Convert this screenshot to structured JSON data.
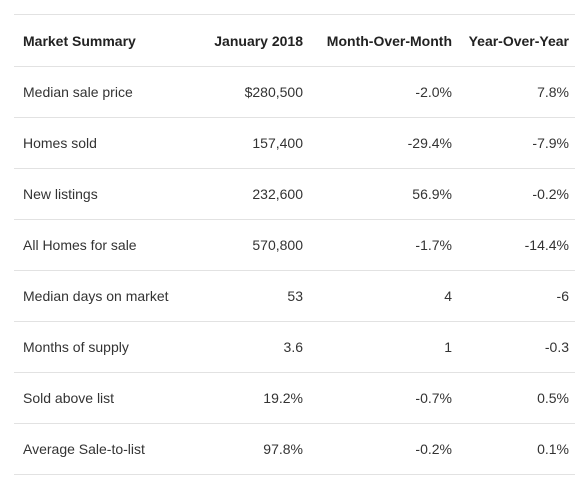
{
  "table": {
    "headers": [
      "Market Summary",
      "January 2018",
      "Month-Over-Month",
      "Year-Over-Year"
    ],
    "rows": [
      [
        "Median sale price",
        "$280,500",
        "-2.0%",
        "7.8%"
      ],
      [
        "Homes sold",
        "157,400",
        "-29.4%",
        "-7.9%"
      ],
      [
        "New listings",
        "232,600",
        "56.9%",
        "-0.2%"
      ],
      [
        "All Homes for sale",
        "570,800",
        "-1.7%",
        "-14.4%"
      ],
      [
        "Median days on market",
        "53",
        "4",
        "-6"
      ],
      [
        "Months of supply",
        "3.6",
        "1",
        "-0.3"
      ],
      [
        "Sold above list",
        "19.2%",
        "-0.7%",
        "0.5%"
      ],
      [
        "Average Sale-to-list",
        "97.8%",
        "-0.2%",
        "0.1%"
      ]
    ]
  }
}
